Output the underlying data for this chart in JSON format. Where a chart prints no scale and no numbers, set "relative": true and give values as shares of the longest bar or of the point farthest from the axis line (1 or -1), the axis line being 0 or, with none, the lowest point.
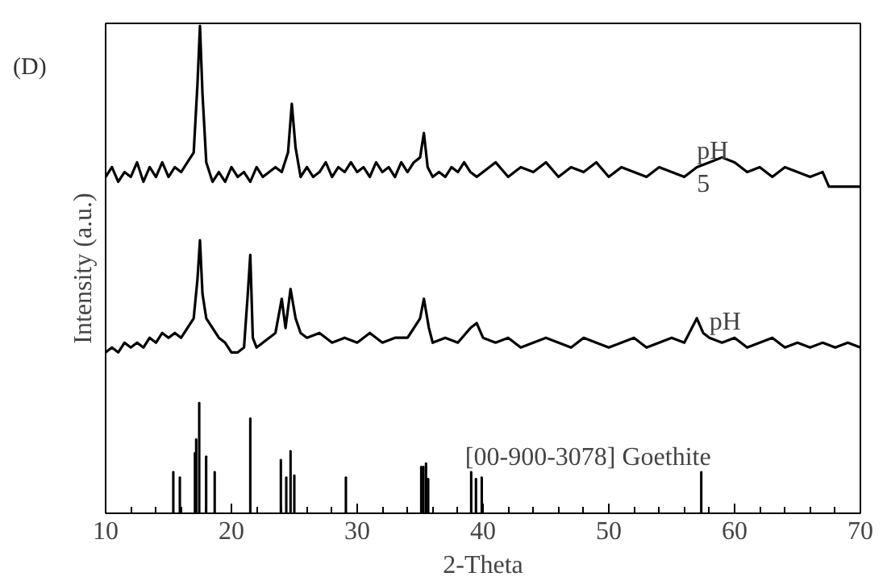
{
  "chart_data": {
    "type": "line",
    "title": "(D)",
    "xlabel": "2-Theta",
    "ylabel": "Intensity (a.u.)",
    "relative": true,
    "xlim": [
      10,
      70
    ],
    "xticks": [
      10,
      {
        "value": 12,
        "label": null
      },
      {
        "value": 14,
        "label": null
      },
      {
        "value": 16,
        "label": null
      },
      {
        "value": 18,
        "label": null
      },
      20,
      {
        "value": 22,
        "label": null
      },
      {
        "value": 24,
        "label": null
      },
      {
        "value": 26,
        "label": null
      },
      {
        "value": 28,
        "label": null
      },
      30,
      {
        "value": 32,
        "label": null
      },
      {
        "value": 34,
        "label": null
      },
      {
        "value": 36,
        "label": null
      },
      {
        "value": 38,
        "label": null
      },
      40,
      {
        "value": 42,
        "label": null
      },
      {
        "value": 44,
        "label": null
      },
      {
        "value": 46,
        "label": null
      },
      {
        "value": 48,
        "label": null
      },
      50,
      {
        "value": 52,
        "label": null
      },
      {
        "value": 54,
        "label": null
      },
      {
        "value": 56,
        "label": null
      },
      {
        "value": 58,
        "label": null
      },
      60,
      {
        "value": 62,
        "label": null
      },
      {
        "value": 64,
        "label": null
      },
      {
        "value": 66,
        "label": null
      },
      {
        "value": 68,
        "label": null
      },
      70
    ],
    "tick_labels": "x",
    "grid": false,
    "legend": false,
    "series": [
      {
        "name": "pH\n5",
        "color": "#000000",
        "x": [
          10,
          10.5,
          11,
          11.5,
          12,
          12.5,
          13,
          13.5,
          14,
          14.5,
          15,
          15.5,
          16,
          16.5,
          17,
          17.3,
          17.5,
          17.7,
          18,
          18.5,
          19,
          19.5,
          20,
          20.5,
          21,
          21.5,
          22,
          22.5,
          23,
          23.5,
          24,
          24.5,
          24.8,
          25.1,
          25.5,
          26,
          26.5,
          27,
          27.5,
          28,
          28.5,
          29,
          29.5,
          30,
          30.5,
          31,
          31.5,
          32,
          32.5,
          33,
          33.5,
          34,
          34.5,
          35,
          35.3,
          35.6,
          36,
          36.5,
          37,
          37.5,
          38,
          38.5,
          39,
          39.5,
          40,
          41,
          42,
          43,
          44,
          45,
          46,
          47,
          48,
          49,
          50,
          51,
          52,
          53,
          54,
          55,
          56,
          57,
          58,
          59,
          60,
          61,
          62,
          63,
          64,
          65,
          66,
          67,
          67.5,
          68,
          70
        ],
        "values": [
          0.69,
          0.71,
          0.68,
          0.7,
          0.69,
          0.72,
          0.68,
          0.71,
          0.69,
          0.72,
          0.69,
          0.71,
          0.7,
          0.72,
          0.74,
          0.88,
          1.0,
          0.86,
          0.72,
          0.68,
          0.7,
          0.68,
          0.71,
          0.69,
          0.7,
          0.68,
          0.71,
          0.69,
          0.7,
          0.71,
          0.7,
          0.74,
          0.84,
          0.75,
          0.69,
          0.71,
          0.69,
          0.7,
          0.72,
          0.69,
          0.71,
          0.7,
          0.72,
          0.7,
          0.71,
          0.69,
          0.72,
          0.7,
          0.71,
          0.69,
          0.72,
          0.7,
          0.72,
          0.73,
          0.78,
          0.71,
          0.69,
          0.7,
          0.69,
          0.71,
          0.7,
          0.72,
          0.7,
          0.69,
          0.7,
          0.72,
          0.69,
          0.71,
          0.7,
          0.72,
          0.69,
          0.71,
          0.7,
          0.72,
          0.69,
          0.71,
          0.7,
          0.69,
          0.71,
          0.7,
          0.69,
          0.71,
          0.72,
          0.73,
          0.72,
          0.7,
          0.71,
          0.69,
          0.71,
          0.7,
          0.69,
          0.7,
          0.67,
          0.67,
          0.67
        ]
      },
      {
        "name": "pH",
        "color": "#000000",
        "x": [
          10,
          10.5,
          11,
          11.5,
          12,
          12.5,
          13,
          13.5,
          14,
          14.5,
          15,
          15.5,
          16,
          16.5,
          17,
          17.3,
          17.5,
          17.7,
          18,
          18.5,
          19,
          19.5,
          20,
          20.5,
          21,
          21.3,
          21.5,
          21.7,
          22,
          22.5,
          23,
          23.5,
          24,
          24.3,
          24.7,
          25.1,
          25.5,
          26,
          27,
          28,
          29,
          30,
          31,
          32,
          33,
          34,
          35,
          35.3,
          35.7,
          36,
          37,
          38,
          39,
          39.5,
          40,
          41,
          42,
          43,
          44,
          45,
          46,
          47,
          48,
          49,
          50,
          51,
          52,
          53,
          54,
          55,
          56,
          57,
          57.5,
          58,
          59,
          60,
          61,
          62,
          63,
          64,
          65,
          66,
          67,
          68,
          69,
          70
        ],
        "values": [
          0.33,
          0.34,
          0.33,
          0.35,
          0.34,
          0.35,
          0.34,
          0.36,
          0.35,
          0.37,
          0.36,
          0.37,
          0.36,
          0.38,
          0.4,
          0.48,
          0.56,
          0.45,
          0.4,
          0.38,
          0.36,
          0.35,
          0.33,
          0.33,
          0.34,
          0.45,
          0.53,
          0.36,
          0.34,
          0.35,
          0.36,
          0.37,
          0.44,
          0.38,
          0.46,
          0.4,
          0.37,
          0.36,
          0.37,
          0.35,
          0.36,
          0.35,
          0.37,
          0.35,
          0.36,
          0.36,
          0.4,
          0.44,
          0.38,
          0.35,
          0.36,
          0.35,
          0.38,
          0.39,
          0.36,
          0.35,
          0.36,
          0.34,
          0.35,
          0.36,
          0.35,
          0.34,
          0.36,
          0.35,
          0.34,
          0.35,
          0.36,
          0.34,
          0.35,
          0.36,
          0.35,
          0.4,
          0.37,
          0.36,
          0.35,
          0.36,
          0.34,
          0.35,
          0.36,
          0.34,
          0.35,
          0.34,
          0.35,
          0.34,
          0.35,
          0.34
        ]
      },
      {
        "type": "bar",
        "name": "[00-900-3078] Goethite",
        "color": "#000000",
        "x": [
          15.38,
          15.9,
          17.1,
          17.2,
          17.44,
          17.99,
          18.67,
          21.5,
          23.93,
          24.36,
          24.7,
          25.0,
          29.1,
          35.09,
          35.26,
          35.47,
          35.64,
          39.06,
          39.44,
          39.9,
          57.35
        ],
        "values": [
          0.085,
          0.074,
          0.124,
          0.152,
          0.227,
          0.117,
          0.085,
          0.195,
          0.11,
          0.074,
          0.128,
          0.078,
          0.074,
          0.096,
          0.096,
          0.103,
          0.071,
          0.085,
          0.071,
          0.074,
          0.085
        ]
      }
    ]
  }
}
